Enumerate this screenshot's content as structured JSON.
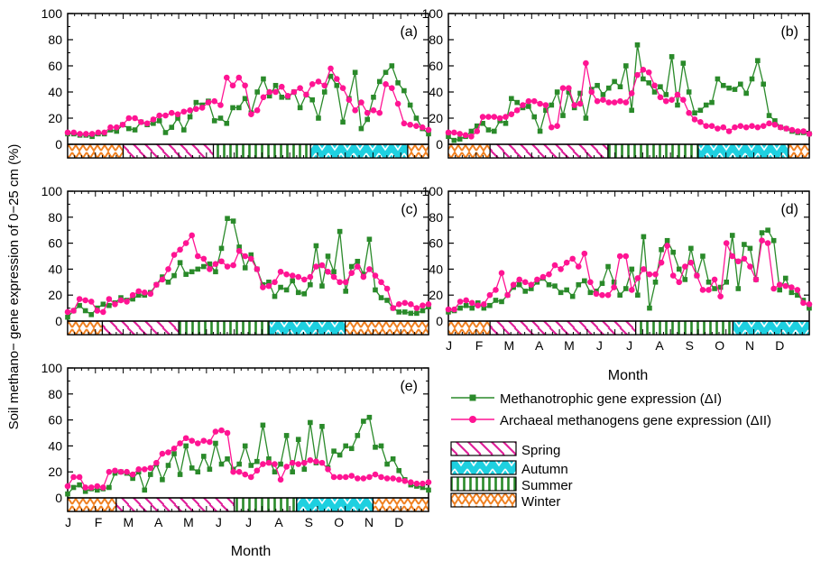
{
  "figure": {
    "ylabel": "Soil methano− gene expression of 0−25 cm (%)",
    "xlabel": "Month",
    "month_ticks": [
      "J",
      "F",
      "M",
      "A",
      "M",
      "J",
      "J",
      "A",
      "S",
      "O",
      "N",
      "D"
    ],
    "colors": {
      "methanotrophic": "#2a8a2a",
      "archaeal": "#ff1493",
      "spring": "#e0209a",
      "autumn": "#1ed0e0",
      "summer": "#2a8a2a",
      "winter": "#f08020"
    }
  },
  "legend": {
    "series": [
      {
        "key": "methanotrophic",
        "label": "Methanotrophic gene expression (ΔI)"
      },
      {
        "key": "archaeal",
        "label": "Archaeal methanogens gene expression (ΔII)"
      }
    ],
    "seasons": [
      {
        "key": "spring",
        "label": "Spring"
      },
      {
        "key": "autumn",
        "label": "Autumn"
      },
      {
        "key": "summer",
        "label": "Summer"
      },
      {
        "key": "winter",
        "label": "Winter"
      }
    ]
  },
  "chart_data": [
    {
      "panel": "(a)",
      "type": "line",
      "x_unit": "week",
      "xlim": [
        0,
        52
      ],
      "ylim": [
        0,
        100
      ],
      "yticks": [
        0,
        20,
        40,
        60,
        80,
        100
      ],
      "seasons": [
        [
          "winter",
          0,
          8
        ],
        [
          "spring",
          8,
          21
        ],
        [
          "summer",
          21,
          35
        ],
        [
          "autumn",
          35,
          49
        ],
        [
          "winter",
          49,
          52
        ]
      ],
      "series": [
        {
          "key": "methanotrophic",
          "values": [
            8,
            8,
            7,
            7,
            6,
            8,
            8,
            11,
            10,
            15,
            12,
            11,
            17,
            15,
            16,
            18,
            9,
            13,
            20,
            11,
            21,
            32,
            30,
            33,
            18,
            20,
            16,
            28,
            28,
            35,
            24,
            40,
            50,
            37,
            45,
            36,
            36,
            40,
            28,
            38,
            34,
            20,
            40,
            52,
            45,
            17,
            35,
            55,
            12,
            19,
            36,
            48,
            55,
            60,
            47,
            41,
            30,
            20,
            12,
            8
          ]
        },
        {
          "key": "archaeal",
          "values": [
            9,
            9,
            8,
            8,
            8,
            9,
            9,
            13,
            13,
            15,
            20,
            20,
            17,
            16,
            19,
            22,
            22,
            24,
            23,
            25,
            26,
            27,
            28,
            32,
            33,
            30,
            51,
            45,
            51,
            45,
            23,
            26,
            36,
            40,
            40,
            44,
            37,
            40,
            43,
            38,
            46,
            48,
            45,
            58,
            50,
            43,
            34,
            26,
            32,
            24,
            26,
            24,
            46,
            43,
            31,
            16,
            15,
            14,
            13,
            11
          ]
        }
      ]
    },
    {
      "panel": "(b)",
      "type": "line",
      "x_unit": "week",
      "xlim": [
        0,
        52
      ],
      "ylim": [
        0,
        100
      ],
      "yticks": [
        0,
        20,
        40,
        60,
        80,
        100
      ],
      "seasons": [
        [
          "winter",
          0,
          6
        ],
        [
          "spring",
          6,
          23
        ],
        [
          "summer",
          23,
          36
        ],
        [
          "autumn",
          36,
          49
        ],
        [
          "winter",
          49,
          52
        ]
      ],
      "series": [
        {
          "key": "methanotrophic",
          "values": [
            6,
            3,
            4,
            6,
            10,
            14,
            16,
            11,
            10,
            18,
            16,
            35,
            32,
            28,
            29,
            21,
            10,
            26,
            30,
            40,
            22,
            40,
            28,
            39,
            20,
            42,
            45,
            38,
            43,
            48,
            44,
            60,
            26,
            76,
            50,
            47,
            40,
            44,
            38,
            67,
            30,
            62,
            40,
            24,
            26,
            30,
            32,
            50,
            45,
            43,
            42,
            46,
            39,
            50,
            64,
            46,
            22,
            18,
            13,
            12,
            10,
            9,
            9,
            8
          ]
        },
        {
          "key": "archaeal",
          "values": [
            9,
            9,
            8,
            7,
            6,
            10,
            21,
            21,
            21,
            20,
            21,
            23,
            26,
            30,
            33,
            33,
            31,
            30,
            13,
            14,
            43,
            43,
            30,
            31,
            62,
            40,
            33,
            34,
            32,
            32,
            33,
            32,
            39,
            53,
            57,
            55,
            45,
            36,
            33,
            34,
            38,
            34,
            24,
            19,
            17,
            14,
            14,
            12,
            13,
            10,
            13,
            14,
            13,
            14,
            13,
            14,
            16,
            15,
            13,
            12,
            11,
            10,
            10,
            8
          ]
        }
      ]
    },
    {
      "panel": "(c)",
      "type": "line",
      "x_unit": "week",
      "xlim": [
        0,
        52
      ],
      "ylim": [
        0,
        100
      ],
      "yticks": [
        0,
        20,
        40,
        60,
        80,
        100
      ],
      "seasons": [
        [
          "winter",
          0,
          5
        ],
        [
          "spring",
          5,
          16
        ],
        [
          "summer",
          16,
          29
        ],
        [
          "autumn",
          29,
          40
        ],
        [
          "winter",
          40,
          52
        ]
      ],
      "series": [
        {
          "key": "methanotrophic",
          "values": [
            3,
            8,
            12,
            8,
            5,
            10,
            13,
            12,
            14,
            18,
            16,
            17,
            20,
            20,
            22,
            28,
            34,
            30,
            35,
            45,
            36,
            38,
            40,
            42,
            44,
            38,
            56,
            79,
            77,
            57,
            41,
            51,
            40,
            28,
            30,
            19,
            26,
            24,
            31,
            22,
            21,
            28,
            58,
            27,
            50,
            38,
            69,
            23,
            42,
            46,
            36,
            63,
            24,
            18,
            16,
            10,
            7,
            7,
            6,
            6,
            8,
            11
          ]
        },
        {
          "key": "archaeal",
          "values": [
            7,
            8,
            17,
            16,
            15,
            8,
            7,
            17,
            13,
            16,
            15,
            20,
            23,
            22,
            21,
            28,
            32,
            40,
            51,
            55,
            60,
            66,
            50,
            48,
            40,
            44,
            46,
            42,
            43,
            54,
            50,
            48,
            40,
            26,
            27,
            30,
            38,
            36,
            35,
            34,
            32,
            34,
            42,
            43,
            38,
            34,
            30,
            30,
            37,
            42,
            34,
            40,
            35,
            30,
            25,
            10,
            13,
            14,
            13,
            10,
            12,
            13
          ]
        }
      ]
    },
    {
      "panel": "(d)",
      "type": "line",
      "x_unit": "week",
      "xlim": [
        0,
        52
      ],
      "ylim": [
        0,
        100
      ],
      "yticks": [
        0,
        20,
        40,
        60,
        80,
        100
      ],
      "seasons": [
        [
          "winter",
          0,
          6
        ],
        [
          "spring",
          6,
          27
        ],
        [
          "summer",
          27,
          41
        ],
        [
          "autumn",
          41,
          57
        ],
        [
          "winter",
          57,
          62
        ]
      ],
      "series": [
        {
          "key": "methanotrophic",
          "values": [
            7,
            8,
            10,
            12,
            10,
            14,
            10,
            12,
            16,
            15,
            20,
            26,
            28,
            23,
            25,
            30,
            33,
            28,
            27,
            22,
            24,
            19,
            28,
            31,
            22,
            23,
            29,
            42,
            30,
            20,
            25,
            40,
            20,
            65,
            10,
            30,
            55,
            62,
            53,
            40,
            32,
            56,
            35,
            50,
            30,
            25,
            26,
            30,
            66,
            25,
            59,
            56,
            32,
            68,
            70,
            62,
            24,
            33,
            22,
            20,
            16,
            10
          ]
        },
        {
          "key": "archaeal",
          "values": [
            9,
            9,
            15,
            16,
            14,
            12,
            13,
            20,
            24,
            37,
            20,
            28,
            32,
            30,
            28,
            32,
            34,
            36,
            43,
            40,
            45,
            48,
            42,
            52,
            30,
            21,
            20,
            20,
            26,
            50,
            50,
            24,
            33,
            40,
            36,
            36,
            45,
            58,
            35,
            30,
            42,
            45,
            35,
            24,
            24,
            32,
            19,
            60,
            50,
            46,
            48,
            42,
            32,
            62,
            60,
            25,
            28,
            27,
            26,
            24,
            14,
            13
          ]
        }
      ]
    },
    {
      "panel": "(e)",
      "type": "line",
      "x_unit": "week",
      "xlim": [
        0,
        52
      ],
      "ylim": [
        0,
        100
      ],
      "yticks": [
        0,
        20,
        40,
        60,
        80,
        100
      ],
      "seasons": [
        [
          "winter",
          0,
          7
        ],
        [
          "spring",
          7,
          24
        ],
        [
          "summer",
          24,
          33
        ],
        [
          "autumn",
          33,
          44
        ],
        [
          "winter",
          44,
          52
        ]
      ],
      "series": [
        {
          "key": "methanotrophic",
          "values": [
            3,
            8,
            10,
            5,
            7,
            6,
            7,
            8,
            19,
            20,
            19,
            15,
            20,
            6,
            18,
            26,
            14,
            25,
            34,
            18,
            40,
            23,
            20,
            32,
            22,
            42,
            26,
            30,
            22,
            26,
            40,
            25,
            28,
            56,
            30,
            20,
            26,
            48,
            20,
            45,
            22,
            58,
            27,
            55,
            23,
            36,
            33,
            40,
            38,
            48,
            59,
            62,
            39,
            40,
            26,
            30,
            21,
            14,
            10,
            9,
            8,
            6
          ]
        },
        {
          "key": "archaeal",
          "values": [
            9,
            16,
            16,
            8,
            8,
            9,
            8,
            20,
            21,
            20,
            20,
            18,
            22,
            22,
            23,
            27,
            34,
            35,
            38,
            42,
            46,
            44,
            42,
            44,
            43,
            51,
            52,
            50,
            20,
            20,
            18,
            16,
            21,
            26,
            27,
            26,
            14,
            24,
            27,
            26,
            27,
            29,
            28,
            27,
            22,
            16,
            16,
            16,
            17,
            15,
            15,
            16,
            18,
            16,
            15,
            15,
            14,
            13,
            12,
            11,
            11,
            12
          ]
        }
      ]
    }
  ]
}
